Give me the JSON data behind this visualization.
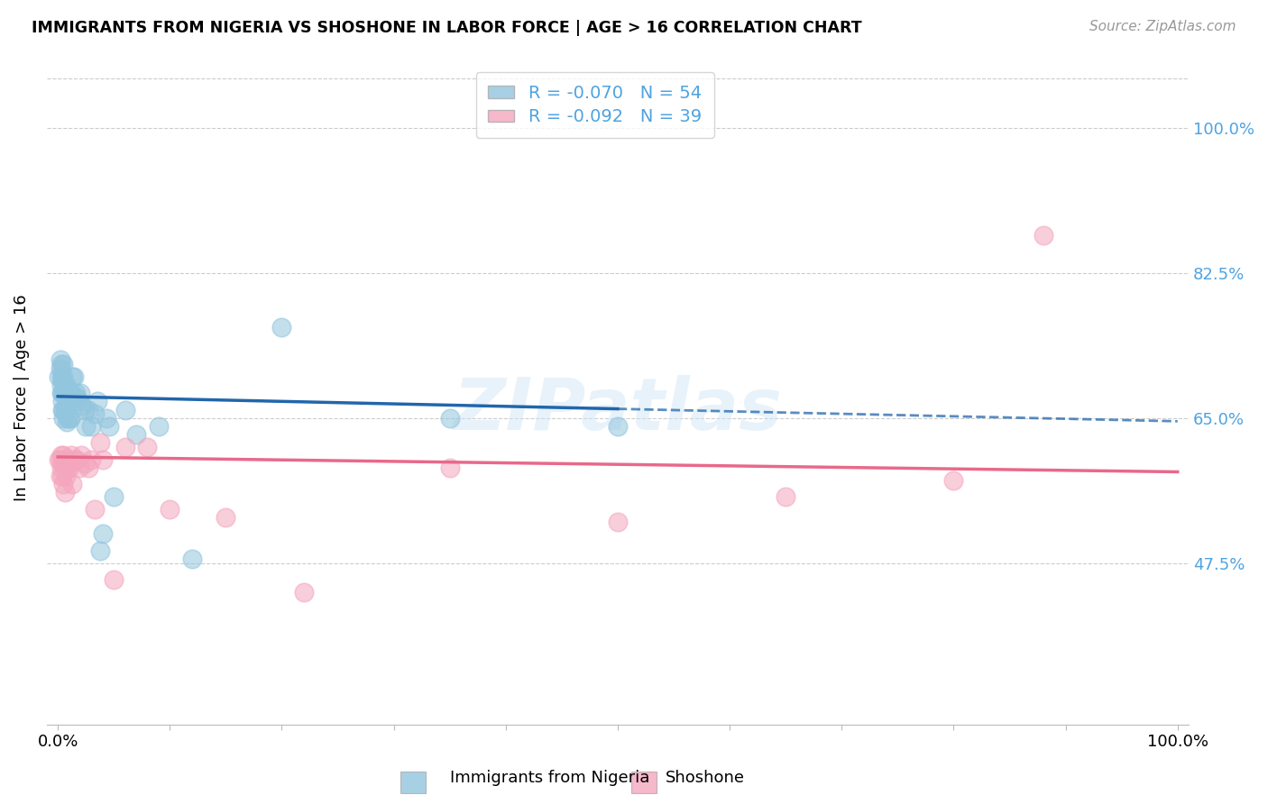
{
  "title": "IMMIGRANTS FROM NIGERIA VS SHOSHONE IN LABOR FORCE | AGE > 16 CORRELATION CHART",
  "source": "Source: ZipAtlas.com",
  "ylabel": "In Labor Force | Age > 16",
  "xlim": [
    -0.01,
    1.01
  ],
  "ylim": [
    0.28,
    1.07
  ],
  "x_tick_positions": [
    0.0,
    0.1,
    0.2,
    0.3,
    0.4,
    0.5,
    0.6,
    0.7,
    0.8,
    0.9,
    1.0
  ],
  "x_tick_labels": [
    "0.0%",
    "",
    "",
    "",
    "",
    "",
    "",
    "",
    "",
    "",
    "100.0%"
  ],
  "y_tick_vals": [
    0.475,
    0.65,
    0.825,
    1.0
  ],
  "y_tick_labels": [
    "47.5%",
    "65.0%",
    "82.5%",
    "100.0%"
  ],
  "nigeria_color": "#92c5de",
  "shoshone_color": "#f4a6be",
  "nigeria_line_color": "#2166ac",
  "shoshone_line_color": "#e8698a",
  "watermark": "ZIPatlas",
  "legend_nigeria_r": "R = -0.070",
  "legend_nigeria_n": "N = 54",
  "legend_shoshone_r": "R = -0.092",
  "legend_shoshone_n": "N = 39",
  "nigeria_x": [
    0.001,
    0.002,
    0.002,
    0.003,
    0.003,
    0.003,
    0.003,
    0.004,
    0.004,
    0.004,
    0.004,
    0.005,
    0.005,
    0.005,
    0.005,
    0.005,
    0.006,
    0.006,
    0.007,
    0.007,
    0.008,
    0.008,
    0.009,
    0.009,
    0.01,
    0.01,
    0.011,
    0.012,
    0.013,
    0.014,
    0.015,
    0.016,
    0.017,
    0.018,
    0.02,
    0.022,
    0.024,
    0.025,
    0.027,
    0.03,
    0.033,
    0.035,
    0.038,
    0.04,
    0.043,
    0.046,
    0.05,
    0.06,
    0.07,
    0.09,
    0.12,
    0.2,
    0.35,
    0.5
  ],
  "nigeria_y": [
    0.7,
    0.71,
    0.72,
    0.68,
    0.69,
    0.7,
    0.715,
    0.66,
    0.67,
    0.68,
    0.695,
    0.65,
    0.66,
    0.68,
    0.7,
    0.715,
    0.66,
    0.685,
    0.66,
    0.69,
    0.645,
    0.68,
    0.65,
    0.685,
    0.65,
    0.68,
    0.65,
    0.68,
    0.7,
    0.7,
    0.675,
    0.68,
    0.675,
    0.67,
    0.68,
    0.665,
    0.66,
    0.64,
    0.66,
    0.64,
    0.655,
    0.67,
    0.49,
    0.51,
    0.65,
    0.64,
    0.555,
    0.66,
    0.63,
    0.64,
    0.48,
    0.76,
    0.65,
    0.64
  ],
  "shoshone_x": [
    0.001,
    0.002,
    0.002,
    0.003,
    0.003,
    0.004,
    0.004,
    0.005,
    0.005,
    0.006,
    0.006,
    0.007,
    0.008,
    0.009,
    0.01,
    0.011,
    0.012,
    0.013,
    0.015,
    0.017,
    0.019,
    0.021,
    0.024,
    0.027,
    0.03,
    0.033,
    0.038,
    0.04,
    0.05,
    0.06,
    0.08,
    0.1,
    0.15,
    0.22,
    0.35,
    0.5,
    0.65,
    0.8,
    0.88
  ],
  "shoshone_y": [
    0.6,
    0.6,
    0.58,
    0.59,
    0.605,
    0.58,
    0.595,
    0.57,
    0.605,
    0.56,
    0.595,
    0.58,
    0.59,
    0.6,
    0.59,
    0.595,
    0.605,
    0.57,
    0.6,
    0.6,
    0.59,
    0.605,
    0.595,
    0.59,
    0.6,
    0.54,
    0.62,
    0.6,
    0.455,
    0.615,
    0.615,
    0.54,
    0.53,
    0.44,
    0.59,
    0.525,
    0.555,
    0.575,
    0.87
  ],
  "background_color": "#ffffff",
  "grid_color": "#cccccc",
  "right_label_color": "#4fa3e0",
  "legend_text_color": "#4fa3e0"
}
